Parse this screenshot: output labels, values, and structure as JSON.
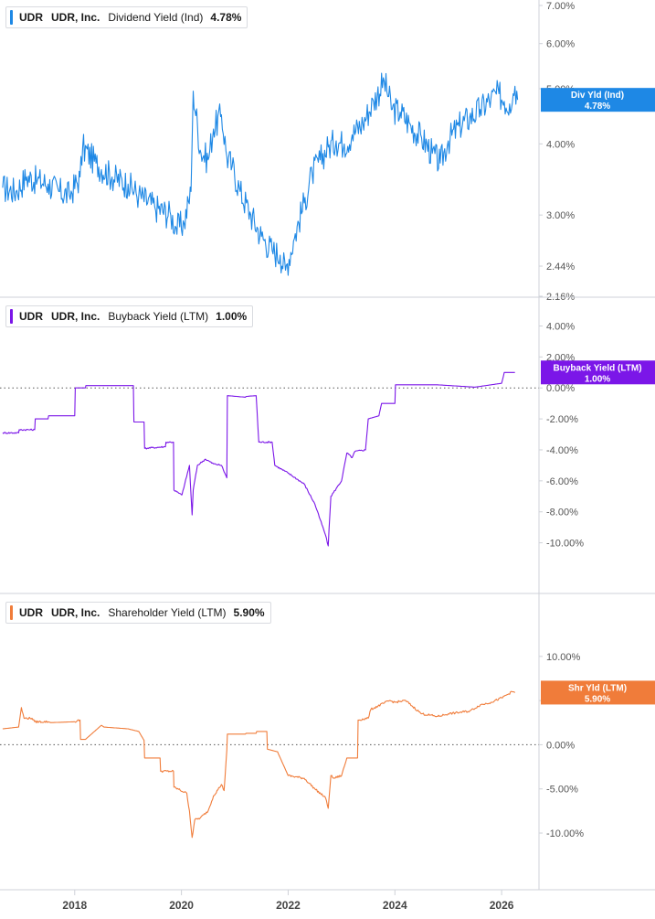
{
  "chart_data": [
    {
      "type": "line",
      "ticker": "UDR",
      "company": "UDR, Inc.",
      "metric": "Dividend Yield (Ind)",
      "value_label": "4.78%",
      "badge_label": "Div Yld (Ind)",
      "badge_value": "4.78%",
      "color": "#1e88e5",
      "scale": "log",
      "ylim": [
        2.16,
        7.0
      ],
      "yticks": [
        "7.00%",
        "6.00%",
        "5.00%",
        "4.00%",
        "3.00%",
        "2.44%",
        "2.16%"
      ],
      "ytick_values": [
        7.0,
        6.0,
        5.0,
        4.0,
        3.0,
        2.44,
        2.16
      ],
      "zero_line": false,
      "series": [
        {
          "x": [
            2016.65,
            2016.9,
            2017.1,
            2017.3,
            2017.5,
            2017.7,
            2017.9,
            2018.1,
            2018.15,
            2018.4,
            2018.7,
            2019.0,
            2019.2,
            2019.5,
            2019.8,
            2019.9,
            2020.05,
            2020.18,
            2020.22,
            2020.35,
            2020.5,
            2020.6,
            2020.75,
            2020.85,
            2020.95,
            2021.1,
            2021.3,
            2021.5,
            2021.7,
            2021.85,
            2021.95,
            2022.1,
            2022.3,
            2022.45,
            2022.6,
            2022.75,
            2022.9,
            2023.05,
            2023.2,
            2023.4,
            2023.6,
            2023.8,
            2023.95,
            2024.1,
            2024.3,
            2024.5,
            2024.7,
            2024.85,
            2025.0,
            2025.2,
            2025.4,
            2025.6,
            2025.8,
            2025.95,
            2026.05,
            2026.15,
            2026.25,
            2026.3
          ],
          "values": [
            3.35,
            3.3,
            3.5,
            3.45,
            3.4,
            3.3,
            3.25,
            3.5,
            3.95,
            3.7,
            3.5,
            3.4,
            3.25,
            3.1,
            3.0,
            2.85,
            2.9,
            3.3,
            4.95,
            3.9,
            3.75,
            4.25,
            4.5,
            3.8,
            3.65,
            3.3,
            3.0,
            2.75,
            2.6,
            2.55,
            2.4,
            2.7,
            3.15,
            3.55,
            3.75,
            3.95,
            4.05,
            4.0,
            4.15,
            4.35,
            4.75,
            5.15,
            4.6,
            4.55,
            4.3,
            4.1,
            3.85,
            3.7,
            4.05,
            4.3,
            4.45,
            4.6,
            4.8,
            4.9,
            4.75,
            4.7,
            5.05,
            4.78
          ]
        }
      ]
    },
    {
      "type": "line",
      "ticker": "UDR",
      "company": "UDR, Inc.",
      "metric": "Buyback Yield (LTM)",
      "value_label": "1.00%",
      "badge_label": "Buyback Yield (LTM)",
      "badge_value": "1.00%",
      "color": "#7b16e8",
      "scale": "linear",
      "ylim": [
        -11.5,
        4.5
      ],
      "yticks": [
        "4.00%",
        "2.00%",
        "0.00%",
        "-2.00%",
        "-4.00%",
        "-6.00%",
        "-8.00%",
        "-10.00%"
      ],
      "ytick_values": [
        4,
        2,
        0,
        -2,
        -4,
        -6,
        -8,
        -10
      ],
      "zero_line": true,
      "series": [
        {
          "x": [
            2016.65,
            2016.95,
            2016.96,
            2017.25,
            2017.26,
            2017.5,
            2017.51,
            2018.0,
            2018.01,
            2018.2,
            2018.21,
            2019.1,
            2019.11,
            2019.3,
            2019.31,
            2019.7,
            2019.71,
            2019.85,
            2019.86,
            2020.0,
            2020.01,
            2020.15,
            2020.2,
            2020.22,
            2020.3,
            2020.45,
            2020.6,
            2020.75,
            2020.85,
            2020.86,
            2020.87,
            2021.2,
            2021.21,
            2021.4,
            2021.45,
            2021.7,
            2021.75,
            2022.0,
            2022.3,
            2022.5,
            2022.6,
            2022.7,
            2022.75,
            2022.8,
            2022.9,
            2023.0,
            2023.1,
            2023.2,
            2023.25,
            2023.45,
            2023.5,
            2023.7,
            2023.75,
            2024.0,
            2024.01,
            2024.8,
            2025.5,
            2026.0,
            2026.05,
            2026.25
          ],
          "values": [
            -2.9,
            -2.9,
            -2.7,
            -2.7,
            -2.0,
            -2.0,
            -1.8,
            -1.8,
            0.0,
            0.0,
            0.15,
            0.15,
            -2.2,
            -2.2,
            -3.9,
            -3.8,
            -3.5,
            -3.5,
            -6.6,
            -6.9,
            -6.9,
            -5.0,
            -8.2,
            -6.6,
            -5.0,
            -4.6,
            -4.9,
            -5.0,
            -5.8,
            -0.5,
            -0.5,
            -0.6,
            -0.55,
            -0.5,
            -3.5,
            -3.5,
            -5.0,
            -5.5,
            -6.2,
            -7.5,
            -8.5,
            -9.5,
            -10.2,
            -7.0,
            -6.5,
            -6.0,
            -4.2,
            -4.5,
            -4.1,
            -4.0,
            -2.0,
            -1.8,
            -1.0,
            -1.0,
            0.2,
            0.2,
            0.05,
            0.3,
            1.0,
            1.0
          ]
        }
      ]
    },
    {
      "type": "line",
      "ticker": "UDR",
      "company": "UDR, Inc.",
      "metric": "Shareholder Yield (LTM)",
      "value_label": "5.90%",
      "badge_label": "Shr Yld (LTM)",
      "badge_value": "5.90%",
      "color": "#f07c3a",
      "scale": "linear",
      "ylim": [
        -13.0,
        13.5
      ],
      "yticks": [
        "10.00%",
        "5.00%",
        "0.00%",
        "-5.00%",
        "-10.00%"
      ],
      "ytick_values": [
        10,
        5,
        0,
        -5,
        -10
      ],
      "zero_line": true,
      "series": [
        {
          "x": [
            2016.65,
            2016.95,
            2017.0,
            2017.05,
            2017.2,
            2017.25,
            2017.5,
            2017.55,
            2018.0,
            2018.1,
            2018.11,
            2018.2,
            2018.5,
            2018.55,
            2019.0,
            2019.2,
            2019.3,
            2019.31,
            2019.6,
            2019.61,
            2019.85,
            2019.86,
            2020.1,
            2020.15,
            2020.2,
            2020.25,
            2020.35,
            2020.5,
            2020.6,
            2020.75,
            2020.8,
            2020.85,
            2020.86,
            2021.2,
            2021.21,
            2021.4,
            2021.41,
            2021.6,
            2021.61,
            2021.8,
            2022.0,
            2022.3,
            2022.5,
            2022.7,
            2022.75,
            2022.8,
            2022.85,
            2023.0,
            2023.1,
            2023.3,
            2023.31,
            2023.5,
            2023.55,
            2023.9,
            2024.0,
            2024.2,
            2024.5,
            2024.8,
            2025.0,
            2025.4,
            2025.6,
            2025.8,
            2026.0,
            2026.2,
            2026.25
          ],
          "values": [
            1.8,
            2.0,
            4.2,
            3.0,
            3.0,
            2.6,
            2.6,
            2.5,
            2.6,
            2.8,
            0.6,
            0.6,
            2.2,
            2.0,
            1.8,
            1.5,
            0.5,
            -1.5,
            -1.5,
            -3.0,
            -3.0,
            -4.8,
            -5.5,
            -7.5,
            -10.5,
            -8.5,
            -8.3,
            -7.5,
            -5.8,
            -4.5,
            -5.2,
            -0.6,
            1.2,
            1.2,
            1.3,
            1.3,
            1.5,
            1.5,
            -0.5,
            -0.8,
            -3.5,
            -3.8,
            -5.0,
            -6.0,
            -7.2,
            -3.5,
            -3.8,
            -3.5,
            -1.5,
            -1.5,
            2.8,
            3.0,
            4.0,
            5.0,
            4.8,
            5.0,
            3.5,
            3.2,
            3.5,
            3.8,
            4.5,
            4.8,
            5.3,
            6.0,
            5.9
          ]
        }
      ]
    }
  ],
  "x_axis": {
    "labels": [
      "2018",
      "2020",
      "2022",
      "2024",
      "2026"
    ],
    "values": [
      2018,
      2020,
      2022,
      2024,
      2026
    ],
    "xlim": [
      2016.6,
      2026.7
    ]
  }
}
